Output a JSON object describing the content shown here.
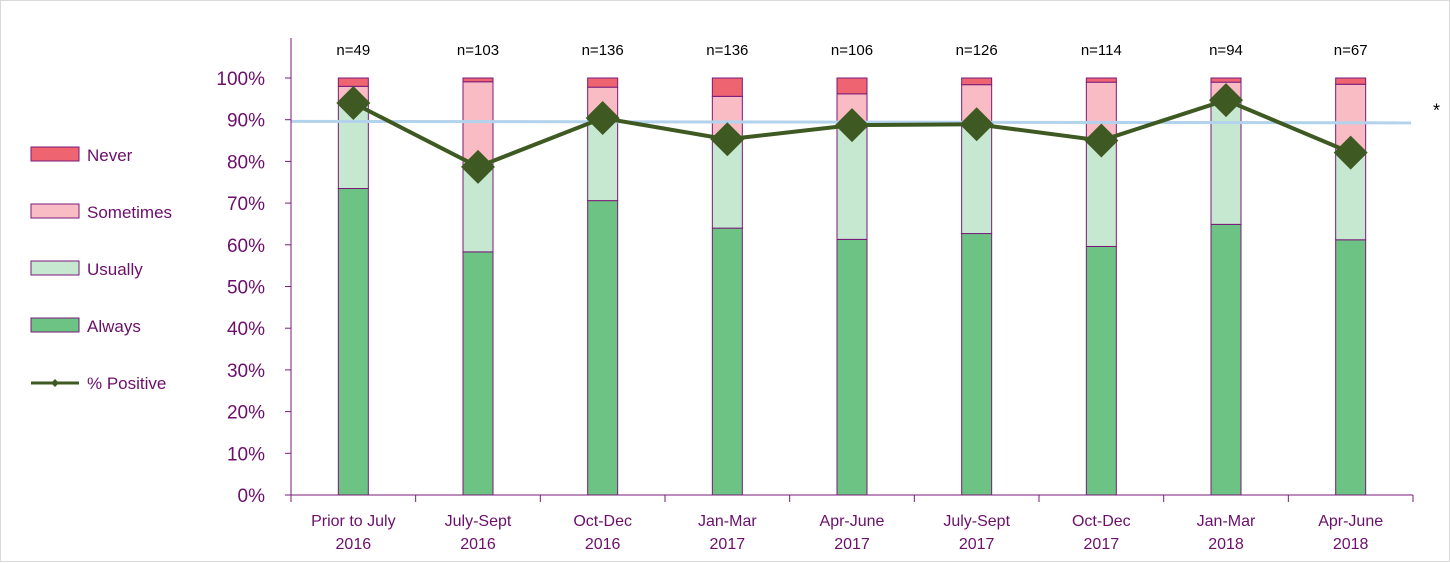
{
  "chart_data": {
    "type": "bar",
    "stacked": true,
    "categories": [
      [
        "Prior to July",
        "2016"
      ],
      [
        "July-Sept",
        "2016"
      ],
      [
        "Oct-Dec",
        "2016"
      ],
      [
        "Jan-Mar",
        "2017"
      ],
      [
        "Apr-June",
        "2017"
      ],
      [
        "July-Sept",
        "2017"
      ],
      [
        "Oct-Dec",
        "2017"
      ],
      [
        "Jan-Mar",
        "2018"
      ],
      [
        "Apr-June",
        "2018"
      ]
    ],
    "n_labels": [
      "n=49",
      "n=103",
      "n=136",
      "n=136",
      "n=106",
      "n=126",
      "n=114",
      "n=94",
      "n=67"
    ],
    "series": [
      {
        "name": "Always",
        "color": "#6cc383",
        "values": [
          73.5,
          58.3,
          70.6,
          64.0,
          61.3,
          62.7,
          59.6,
          64.9,
          61.2
        ]
      },
      {
        "name": "Usually",
        "color": "#c6e8d0",
        "values": [
          20.4,
          20.4,
          19.8,
          21.3,
          27.4,
          26.2,
          25.4,
          29.8,
          20.9
        ]
      },
      {
        "name": "Sometimes",
        "color": "#f9bcc5",
        "values": [
          4.1,
          20.4,
          7.4,
          10.3,
          7.5,
          9.5,
          14.0,
          4.3,
          16.4
        ]
      },
      {
        "name": "Never",
        "color": "#ee6470",
        "values": [
          2.0,
          0.9,
          2.2,
          4.4,
          3.8,
          1.6,
          1.0,
          1.0,
          1.5
        ]
      }
    ],
    "line": {
      "name": "% Positive",
      "color": "#3e5a22",
      "values": [
        94,
        78.7,
        90.4,
        85.3,
        88.7,
        88.9,
        85.0,
        94.7,
        82.1
      ]
    },
    "benchmark": {
      "value": 89.6,
      "color": "#b3d2ec",
      "label": "*"
    },
    "yticks": [
      "0%",
      "10%",
      "20%",
      "30%",
      "40%",
      "50%",
      "60%",
      "70%",
      "80%",
      "90%",
      "100%"
    ],
    "ylim": [
      0,
      100
    ],
    "legend_order": [
      "Never",
      "Sometimes",
      "Usually",
      "Always",
      "% Positive"
    ],
    "legend_position": "left",
    "grid": false
  }
}
